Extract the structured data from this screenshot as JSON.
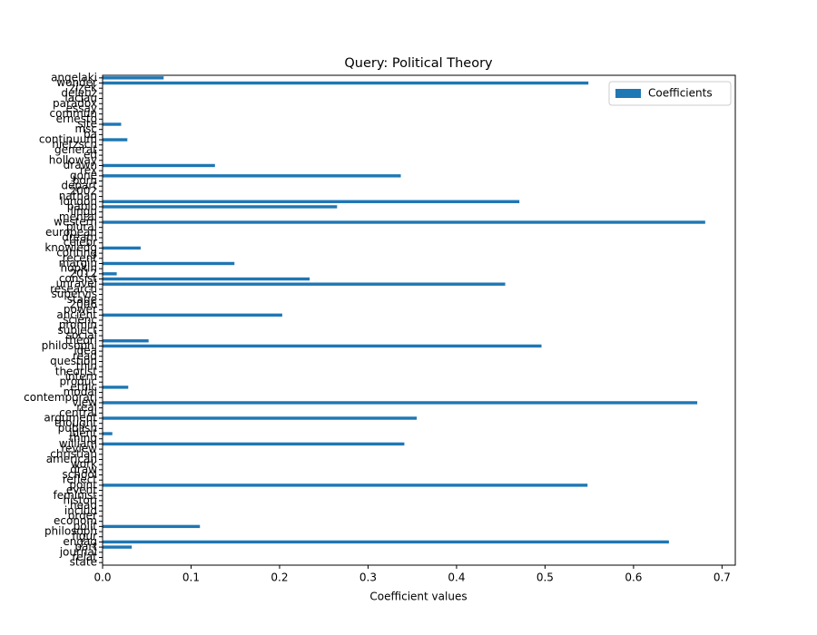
{
  "chart_data": {
    "type": "barh",
    "title": "Query: Political Theory",
    "xlabel": "Coefficient values",
    "categories": [
      "angelaki",
      "wonder",
      "zizek",
      "deleuz",
      "laclau",
      "paradox",
      "essay",
      "commun",
      "ernesto",
      "site",
      "msc",
      "ba",
      "continuum",
      "nietzsch",
      "generat",
      "ed",
      "holloway",
      "drawn",
      "rex",
      "gone",
      "born",
      "depart",
      "2002",
      "nathan",
      "london",
      "pablo",
      "lingu",
      "mental",
      "western",
      "plural",
      "european",
      "dream",
      "celebr",
      "knowledg",
      "conting",
      "recent",
      "margin",
      "hopkin",
      "2012",
      "consist",
      "unravel",
      "research",
      "supervis",
      "stage",
      "2006",
      "power",
      "ancient",
      "scienc",
      "promin",
      "subject",
      "social",
      "theori",
      "philosophi",
      "idea",
      "read",
      "question",
      "thin",
      "theorist",
      "intern",
      "produc",
      "ethic",
      "modal",
      "contemporari",
      "view",
      "real",
      "central",
      "argument",
      "thought",
      "publish",
      "ident",
      "thing",
      "william",
      "review",
      "christian",
      "american",
      "work",
      "draw",
      "school",
      "reflect",
      "point",
      "event",
      "feminist",
      "histori",
      "head",
      "includ",
      "order",
      "econom",
      "polit",
      "philosoph",
      "figur",
      "engag",
      "part",
      "journal",
      "relat",
      "state"
    ],
    "series": [
      {
        "name": "Coefficients",
        "color": "#1f77b4",
        "values": [
          0.069,
          0.549,
          0,
          0,
          0,
          0,
          0,
          0,
          0,
          0.021,
          0,
          0,
          0.028,
          0,
          0,
          0,
          0,
          0.127,
          0,
          0.337,
          0,
          0,
          0,
          0,
          0.471,
          0.265,
          0,
          0,
          0.681,
          0,
          0,
          0,
          0,
          0.043,
          0,
          0,
          0.149,
          0,
          0.016,
          0.234,
          0.455,
          0,
          0,
          0,
          0,
          0,
          0.203,
          0,
          0,
          0,
          0,
          0.052,
          0.496,
          0,
          0,
          0,
          0,
          0,
          0,
          0,
          0.029,
          0,
          0,
          0.672,
          0,
          0,
          0.355,
          0,
          0,
          0.011,
          0,
          0.341,
          0,
          0,
          0,
          0,
          0,
          0,
          0,
          0.548,
          0,
          0,
          0,
          0,
          0,
          0,
          0,
          0.11,
          0,
          0,
          0.64,
          0.033,
          0,
          0,
          0
        ]
      }
    ],
    "xlim": [
      0,
      0.715
    ],
    "xticks": [
      {
        "value": 0,
        "label": "0.0"
      },
      0.1,
      0.2,
      0.3,
      0.4,
      0.5,
      0.6,
      0.7
    ],
    "legend": "upper right"
  }
}
